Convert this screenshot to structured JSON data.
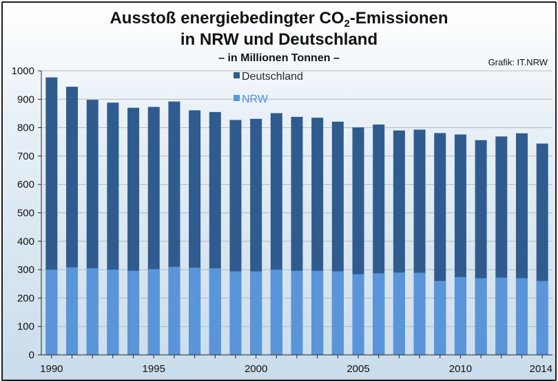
{
  "chart_data": {
    "type": "bar",
    "title_line1_prefix": "Ausstoß energiebedingter CO",
    "title_line1_subscript": "2",
    "title_line1_suffix": "-Emissionen",
    "title_line2": "in NRW und Deutschland",
    "subtitle": "– in Millionen Tonnen –",
    "credit": "Grafik: IT.NRW",
    "xlabel": "",
    "ylabel": "",
    "ylim": [
      0,
      1000
    ],
    "yticks": [
      0,
      100,
      200,
      300,
      400,
      500,
      600,
      700,
      800,
      900,
      1000
    ],
    "x_tick_labels": [
      "1990",
      "1995",
      "2000",
      "2005",
      "2010",
      "2014"
    ],
    "grid": true,
    "legend_position": "top-left",
    "categories": [
      "1990",
      "1991",
      "1992",
      "1993",
      "1994",
      "1995",
      "1996",
      "1997",
      "1998",
      "1999",
      "2000",
      "2001",
      "2002",
      "2003",
      "2004",
      "2005",
      "2006",
      "2007",
      "2008",
      "2009",
      "2010",
      "2011",
      "2012",
      "2013",
      "2014"
    ],
    "series": [
      {
        "name": "Deutschland",
        "color": "#2f5b8f",
        "values": [
          977,
          944,
          898,
          888,
          870,
          873,
          892,
          861,
          855,
          827,
          831,
          851,
          838,
          835,
          821,
          801,
          811,
          790,
          793,
          781,
          776,
          756,
          769,
          780,
          744
        ]
      },
      {
        "name": "NRW",
        "color": "#5b95d9",
        "values": [
          300,
          308,
          305,
          300,
          296,
          302,
          310,
          307,
          305,
          294,
          294,
          300,
          296,
          296,
          294,
          284,
          287,
          290,
          289,
          260,
          274,
          270,
          272,
          270,
          260
        ]
      }
    ]
  }
}
